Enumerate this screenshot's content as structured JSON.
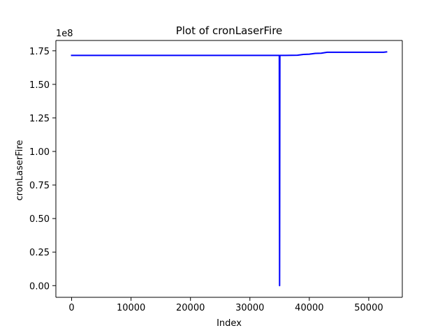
{
  "chart_data": {
    "type": "line",
    "title": "Plot of cronLaserFire",
    "xlabel": "Index",
    "ylabel": "cronLaserFire",
    "y_offset_label": "1e8",
    "xlim": [
      -2650,
      55650
    ],
    "ylim": [
      -8700000,
      182700000
    ],
    "x_ticks": [
      0,
      10000,
      20000,
      30000,
      40000,
      50000
    ],
    "x_tick_labels": [
      "0",
      "10000",
      "20000",
      "30000",
      "40000",
      "50000"
    ],
    "y_ticks": [
      0,
      25000000,
      50000000,
      75000000,
      100000000,
      125000000,
      150000000,
      175000000
    ],
    "y_tick_labels": [
      "0.00",
      "0.25",
      "0.50",
      "0.75",
      "1.00",
      "1.25",
      "1.50",
      "1.75"
    ],
    "grid": false,
    "series": [
      {
        "color": "#0000ff",
        "x": [
          0,
          10000,
          20000,
          30000,
          34900,
          34950,
          35000,
          35050,
          35100,
          36000,
          38000,
          39000,
          40000,
          41000,
          42000,
          43000,
          45000,
          48000,
          50000,
          52500,
          53000
        ],
        "values": [
          171600000,
          171600000,
          171600000,
          171600000,
          171600000,
          171600000,
          0,
          171600000,
          171600000,
          171600000,
          171700000,
          172300000,
          172500000,
          173100000,
          173200000,
          173900000,
          173900000,
          173900000,
          173900000,
          173900000,
          174200000
        ]
      }
    ]
  }
}
